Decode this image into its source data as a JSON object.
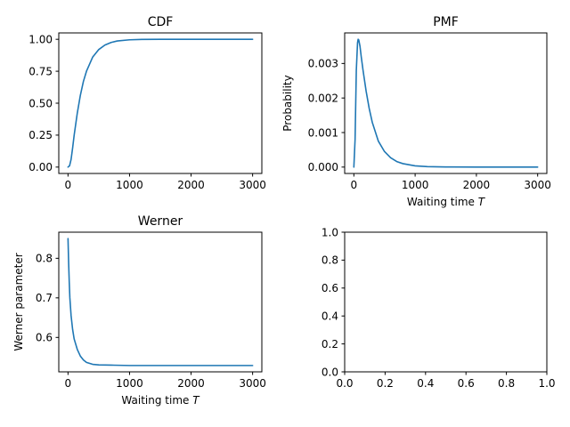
{
  "chart_data": [
    {
      "type": "line",
      "title": "CDF",
      "xlabel": "",
      "ylabel": "",
      "xlim": [
        -150,
        3150
      ],
      "ylim": [
        -0.05,
        1.05
      ],
      "xticks": [
        0,
        1000,
        2000,
        3000
      ],
      "xtick_labels": [
        "0",
        "1000",
        "2000",
        "3000"
      ],
      "yticks": [
        0.0,
        0.25,
        0.5,
        0.75,
        1.0
      ],
      "ytick_labels": [
        "0.00",
        "0.25",
        "0.50",
        "0.75",
        "1.00"
      ],
      "grid": false,
      "series": [
        {
          "color": "#1f77b4",
          "x": [
            0,
            25,
            50,
            75,
            100,
            150,
            200,
            250,
            300,
            400,
            500,
            600,
            700,
            800,
            1000,
            1200,
            1500,
            2000,
            2500,
            3000
          ],
          "y": [
            0.0,
            0.01,
            0.06,
            0.15,
            0.25,
            0.42,
            0.56,
            0.67,
            0.75,
            0.86,
            0.92,
            0.955,
            0.975,
            0.987,
            0.996,
            0.999,
            1.0,
            1.0,
            1.0,
            1.0
          ]
        }
      ]
    },
    {
      "type": "line",
      "title": "PMF",
      "xlabel": "Waiting time T",
      "ylabel": "Probability",
      "xlim": [
        -150,
        3150
      ],
      "ylim": [
        -0.000185,
        0.003885
      ],
      "xticks": [
        0,
        1000,
        2000,
        3000
      ],
      "xtick_labels": [
        "0",
        "1000",
        "2000",
        "3000"
      ],
      "yticks": [
        0.0,
        0.001,
        0.002,
        0.003
      ],
      "ytick_labels": [
        "0.000",
        "0.001",
        "0.002",
        "0.003"
      ],
      "grid": false,
      "series": [
        {
          "color": "#1f77b4",
          "x": [
            0,
            20,
            40,
            60,
            70,
            80,
            100,
            120,
            150,
            200,
            250,
            300,
            400,
            500,
            600,
            700,
            800,
            1000,
            1200,
            1500,
            2000,
            2500,
            3000
          ],
          "y": [
            0.0,
            0.0008,
            0.0028,
            0.0036,
            0.0037,
            0.00368,
            0.0035,
            0.0032,
            0.0028,
            0.0022,
            0.0017,
            0.0013,
            0.00075,
            0.00045,
            0.00027,
            0.00016,
            0.0001,
            3.5e-05,
            1.2e-05,
            3e-06,
            0.0,
            0.0,
            0.0
          ]
        }
      ]
    },
    {
      "type": "line",
      "title": "Werner",
      "xlabel": "Waiting time T",
      "ylabel": "Werner parameter",
      "xlim": [
        -150,
        3150
      ],
      "ylim": [
        0.513,
        0.866
      ],
      "xticks": [
        0,
        1000,
        2000,
        3000
      ],
      "xtick_labels": [
        "0",
        "1000",
        "2000",
        "3000"
      ],
      "yticks": [
        0.6,
        0.7,
        0.8
      ],
      "ytick_labels": [
        "0.6",
        "0.7",
        "0.8"
      ],
      "grid": false,
      "series": [
        {
          "color": "#1f77b4",
          "x": [
            0,
            10,
            20,
            30,
            50,
            75,
            100,
            150,
            200,
            250,
            300,
            400,
            500,
            700,
            1000,
            1500,
            2000,
            2500,
            3000
          ],
          "y": [
            0.85,
            0.79,
            0.74,
            0.7,
            0.655,
            0.62,
            0.596,
            0.57,
            0.553,
            0.543,
            0.537,
            0.532,
            0.5305,
            0.53,
            0.529,
            0.529,
            0.529,
            0.529,
            0.529
          ]
        }
      ]
    },
    {
      "type": "line",
      "title": "",
      "xlabel": "",
      "ylabel": "",
      "xlim": [
        0,
        1
      ],
      "ylim": [
        0,
        1
      ],
      "xticks": [
        0.0,
        0.2,
        0.4,
        0.6,
        0.8,
        1.0
      ],
      "xtick_labels": [
        "0.0",
        "0.2",
        "0.4",
        "0.6",
        "0.8",
        "1.0"
      ],
      "yticks": [
        0.0,
        0.2,
        0.4,
        0.6,
        0.8,
        1.0
      ],
      "ytick_labels": [
        "0.0",
        "0.2",
        "0.4",
        "0.6",
        "0.8",
        "1.0"
      ],
      "grid": false,
      "series": []
    }
  ]
}
